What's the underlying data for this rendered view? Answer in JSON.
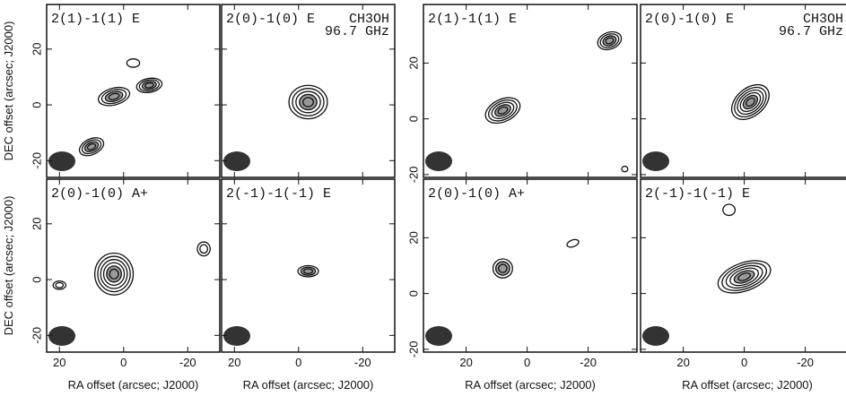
{
  "figures": [
    {
      "xlim": [
        24,
        -30
      ],
      "ylim": [
        -26,
        36
      ],
      "xticks": [
        20,
        0,
        -20
      ],
      "yticks": [
        -20,
        0,
        20
      ],
      "xlabel": "RA offset (arcsec; J2000)",
      "ylabel": "DEC offset (arcsec; J2000)",
      "panels": [
        {
          "label": "2(1)-1(1) E"
        },
        {
          "label": "2(0)-1(0) E",
          "note": [
            "CH3OH",
            "96.7 GHz"
          ]
        },
        {
          "label": "2(0)-1(0) A+"
        },
        {
          "label": "2(-1)-1(-1) E"
        }
      ]
    },
    {
      "xlim": [
        34,
        -36
      ],
      "ylim": [
        -21,
        41
      ],
      "xticks": [
        20,
        0,
        -20
      ],
      "yticks": [
        -20,
        0,
        20
      ],
      "xlabel": "RA offset (arcsec; J2000)",
      "panels": [
        {
          "label": "2(1)-1(1) E"
        },
        {
          "label": "2(0)-1(0) E",
          "note": [
            "CH3OH",
            "96.7 GHz"
          ]
        },
        {
          "label": "2(0)-1(0) A+"
        },
        {
          "label": "2(-1)-1(-1) E"
        }
      ]
    }
  ]
}
